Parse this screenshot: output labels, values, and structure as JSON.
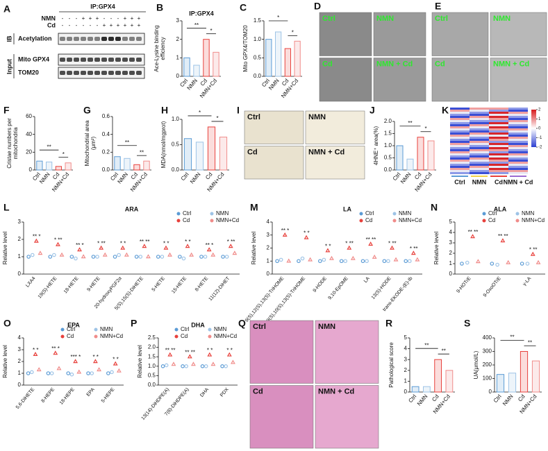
{
  "chart_data": [
    {
      "type": "bar",
      "letter": "B",
      "title": "IP:GPX4",
      "ylabel": [
        "Ace-Lysine binding",
        "efficiency"
      ],
      "categories": [
        "Ctrl",
        "NMN",
        "Cd",
        "NMN+Cd"
      ],
      "values": [
        1.0,
        0.6,
        2.0,
        1.3
      ],
      "colors": [
        "#5b9bd5",
        "#9dc3e6",
        "#e8413c",
        "#f08c8a"
      ],
      "ylim": [
        0,
        3
      ],
      "yticks": [
        0,
        1,
        2,
        3
      ],
      "significance": [
        "**",
        "*"
      ]
    },
    {
      "type": "bar",
      "letter": "C",
      "ylabel": "Mito GPX4/TOM20",
      "categories": [
        "Ctrl",
        "NMN",
        "Cd",
        "NMN+Cd"
      ],
      "values": [
        1.0,
        1.2,
        0.75,
        0.95
      ],
      "colors": [
        "#5b9bd5",
        "#9dc3e6",
        "#e8413c",
        "#f08c8a"
      ],
      "ylim": [
        0,
        1.5
      ],
      "yticks": [
        {
          "value": 0,
          "label": "0.0"
        },
        {
          "value": 0.5,
          "label": "0.5"
        },
        {
          "value": 1,
          "label": "1.0"
        },
        {
          "value": 1.5,
          "label": "1.5"
        }
      ],
      "significance": [
        "*",
        "*"
      ]
    },
    {
      "type": "bar",
      "letter": "F",
      "ylabel": [
        "Cristae numbers per",
        "mitochondria"
      ],
      "categories": [
        "Ctrl",
        "NMN",
        "Cd",
        "NMN+Cd"
      ],
      "values": [
        10,
        9,
        4,
        8
      ],
      "colors": [
        "#5b9bd5",
        "#9dc3e6",
        "#e8413c",
        "#f08c8a"
      ],
      "ylim": [
        0,
        60
      ],
      "yticks": [
        0,
        20,
        40,
        60
      ],
      "significance": [
        "**",
        "*"
      ]
    },
    {
      "type": "bar",
      "letter": "G",
      "ylabel": [
        "Mitochondrial area",
        "(μm²)"
      ],
      "categories": [
        "Ctrl",
        "NMN",
        "Cd",
        "NMN+Cd"
      ],
      "values": [
        0.15,
        0.13,
        0.06,
        0.1
      ],
      "colors": [
        "#5b9bd5",
        "#9dc3e6",
        "#e8413c",
        "#f08c8a"
      ],
      "ylim": [
        0,
        0.6
      ],
      "yticks": [
        {
          "value": 0,
          "label": "0.0"
        },
        0.2,
        0.4,
        0.6
      ],
      "significance": [
        "**",
        "**"
      ]
    },
    {
      "type": "bar",
      "letter": "H",
      "ylabel": "MDA(nmol/mgprot)",
      "categories": [
        "Ctrl",
        "NMN",
        "Cd",
        "NMN+Cd"
      ],
      "values": [
        0.62,
        0.55,
        0.85,
        0.65
      ],
      "colors": [
        "#5b9bd5",
        "#9dc3e6",
        "#e8413c",
        "#f08c8a"
      ],
      "ylim": [
        0,
        1
      ],
      "yticks": [
        {
          "value": 0,
          "label": "0.0"
        },
        0.5,
        {
          "value": 1,
          "label": "1.0"
        }
      ],
      "significance": [
        "*",
        "*"
      ]
    },
    {
      "type": "bar",
      "letter": "J",
      "ylabel": "4HNE⁺ area(%)",
      "categories": [
        "Ctrl",
        "NMN",
        "Cd",
        "NMN+Cd"
      ],
      "values": [
        1.0,
        0.45,
        1.35,
        1.2
      ],
      "colors": [
        "#5b9bd5",
        "#9dc3e6",
        "#e8413c",
        "#f08c8a"
      ],
      "ylim": [
        0,
        2
      ],
      "yticks": [
        {
          "value": 0,
          "label": "0.0"
        },
        0.5,
        {
          "value": 1,
          "label": "1.0"
        },
        1.5,
        {
          "value": 2,
          "label": "2.0"
        }
      ],
      "significance": [
        "**",
        "*"
      ]
    },
    {
      "type": "dot",
      "letter": "L",
      "title": "ARA",
      "ylabel": "Relative level",
      "categories": [
        "LXA4",
        "19(S)-HETE",
        "18-HETE",
        "9-HETE",
        "20-hydroxyPGF2α",
        "5(S),15(S)-DiHETE",
        "5-HETE",
        "15-HETE",
        "8-HETE",
        "11(12)-DiHET"
      ],
      "series": [
        {
          "name": "Ctrl",
          "color": "#5b9bd5",
          "values": [
            1.0,
            1.0,
            1.0,
            1.0,
            1.0,
            1.0,
            1.0,
            1.0,
            1.0,
            1.0
          ]
        },
        {
          "name": "NMN",
          "color": "#9dc3e6",
          "values": [
            1.1,
            1.1,
            0.9,
            1.0,
            1.1,
            1.0,
            1.0,
            0.9,
            1.0,
            1.0
          ]
        },
        {
          "name": "Cd",
          "color": "#e8413c",
          "values": [
            1.9,
            1.7,
            1.4,
            1.5,
            1.5,
            1.6,
            1.5,
            1.6,
            1.4,
            1.6
          ]
        },
        {
          "name": "NMN+Cd",
          "color": "#f08c8a",
          "values": [
            1.2,
            1.1,
            1.0,
            1.1,
            1.1,
            1.0,
            1.1,
            1.1,
            1.1,
            1.2
          ]
        }
      ],
      "ylim": [
        0,
        3
      ],
      "yticks": [
        0,
        1,
        2,
        3
      ],
      "significance": [
        "** *",
        "* **",
        "** *",
        "* **",
        "* *",
        "** **",
        "* *",
        "* *",
        "** *",
        "* **"
      ]
    },
    {
      "type": "dot",
      "letter": "M",
      "title": "LA",
      "ylabel": "Relative level",
      "categories": [
        "9(S),12(S),13(S)-TriHOME",
        "9(S),10(S),13(S)-TriHOME",
        "9-HODE",
        "9,10-EpOME",
        "LA",
        "13(S)-HODE",
        "trans-EKODE-(E)-Ib"
      ],
      "series": [
        {
          "name": "Ctrl",
          "color": "#5b9bd5",
          "values": [
            1.0,
            1.0,
            1.0,
            1.0,
            1.0,
            1.0,
            1.0
          ]
        },
        {
          "name": "NMN",
          "color": "#9dc3e6",
          "values": [
            1.1,
            1.2,
            1.1,
            1.0,
            1.0,
            1.0,
            1.0
          ]
        },
        {
          "name": "Cd",
          "color": "#e8413c",
          "values": [
            3.0,
            2.8,
            1.8,
            2.0,
            2.3,
            2.0,
            1.6
          ]
        },
        {
          "name": "NMN+Cd",
          "color": "#f08c8a",
          "values": [
            1.0,
            1.1,
            1.2,
            1.2,
            1.3,
            1.1,
            1.1
          ]
        }
      ],
      "ylim": [
        0,
        4
      ],
      "yticks": [
        0,
        1,
        2,
        3,
        4
      ],
      "significance": [
        "** *",
        "* *",
        "* *",
        "* **",
        "** **",
        "* **",
        "* **"
      ]
    },
    {
      "type": "dot",
      "letter": "N",
      "title": "ALA",
      "ylabel": "Relative level",
      "categories": [
        "9-HOTrE",
        "9-OxoOTrE",
        "γ-LA"
      ],
      "series": [
        {
          "name": "Ctrl",
          "color": "#5b9bd5",
          "values": [
            1.0,
            1.0,
            1.0
          ]
        },
        {
          "name": "NMN",
          "color": "#9dc3e6",
          "values": [
            1.1,
            0.9,
            1.0
          ]
        },
        {
          "name": "Cd",
          "color": "#e8413c",
          "values": [
            3.6,
            3.2,
            1.9
          ]
        },
        {
          "name": "NMN+Cd",
          "color": "#f08c8a",
          "values": [
            1.2,
            1.1,
            1.1
          ]
        }
      ],
      "ylim": [
        0,
        5
      ],
      "yticks": [
        0,
        1,
        2,
        3,
        4,
        5
      ],
      "significance": [
        "** **",
        "** **",
        "* **"
      ]
    },
    {
      "type": "dot",
      "letter": "O",
      "title": "EPA",
      "ylabel": "Relative level",
      "categories": [
        "5,6-DiHETE",
        "8-HEPE",
        "18-HEPE",
        "EPA",
        "5-HEPE"
      ],
      "series": [
        {
          "name": "Ctrl",
          "color": "#5b9bd5",
          "values": [
            1.0,
            1.0,
            1.0,
            1.0,
            1.0
          ]
        },
        {
          "name": "NMN",
          "color": "#9dc3e6",
          "values": [
            1.1,
            1.0,
            0.9,
            1.0,
            1.1
          ]
        },
        {
          "name": "Cd",
          "color": "#e8413c",
          "values": [
            2.6,
            2.7,
            2.0,
            2.0,
            1.8
          ]
        },
        {
          "name": "NMN+Cd",
          "color": "#f08c8a",
          "values": [
            1.3,
            1.4,
            1.1,
            1.3,
            1.2
          ]
        }
      ],
      "ylim": [
        0,
        4
      ],
      "yticks": [
        0,
        1,
        2,
        3,
        4
      ],
      "significance": [
        "* *",
        "** *",
        "*** *",
        "* *",
        "* *"
      ]
    },
    {
      "type": "dot",
      "letter": "P",
      "title": "DHA",
      "ylabel": "Relative level",
      "categories": [
        "13(14)-DiHDPE(A)",
        "7(8)-DiHDPE(A)",
        "DHA",
        "PDX"
      ],
      "series": [
        {
          "name": "Ctrl",
          "color": "#5b9bd5",
          "values": [
            1.0,
            1.0,
            1.0,
            1.0
          ]
        },
        {
          "name": "NMN",
          "color": "#9dc3e6",
          "values": [
            1.05,
            1.0,
            1.0,
            1.0
          ]
        },
        {
          "name": "Cd",
          "color": "#e8413c",
          "values": [
            1.6,
            1.5,
            1.6,
            1.6
          ]
        },
        {
          "name": "NMN+Cd",
          "color": "#f08c8a",
          "values": [
            1.1,
            1.1,
            1.1,
            1.2
          ]
        }
      ],
      "ylim": [
        0,
        2.5
      ],
      "yticks": [
        {
          "value": 0,
          "label": "0.0"
        },
        0.5,
        {
          "value": 1,
          "label": "1.0"
        },
        1.5,
        {
          "value": 2,
          "label": "2.0"
        },
        2.5
      ],
      "significance": [
        "** **",
        "** **",
        "* *",
        "* *"
      ]
    },
    {
      "type": "bar",
      "letter": "R",
      "ylabel": "Pathological score",
      "categories": [
        "Ctrl",
        "NMN",
        "Cd",
        "NMN+Cd"
      ],
      "values": [
        0.5,
        0.5,
        3.0,
        2.0
      ],
      "colors": [
        "#5b9bd5",
        "#9dc3e6",
        "#e8413c",
        "#f08c8a"
      ],
      "ylim": [
        0,
        5
      ],
      "yticks": [
        0,
        1,
        2,
        3,
        4,
        5
      ],
      "significance": [
        "**",
        "**"
      ]
    },
    {
      "type": "bar",
      "letter": "S",
      "ylabel": "UA(μmol/L)",
      "categories": [
        "Ctrl",
        "NMN",
        "Cd",
        "NMN+Cd"
      ],
      "values": [
        130,
        140,
        300,
        230
      ],
      "colors": [
        "#5b9bd5",
        "#9dc3e6",
        "#e8413c",
        "#f08c8a"
      ],
      "ylim": [
        0,
        400
      ],
      "yticks": [
        0,
        100,
        200,
        300,
        400
      ],
      "significance": [
        "**",
        "**"
      ]
    }
  ],
  "blot": {
    "letter": "A",
    "title": "IP:GPX4",
    "rows": [
      {
        "label": "NMN",
        "signs": [
          "-",
          "-",
          "-",
          "+",
          "+",
          "+",
          "-",
          "-",
          "-",
          "+",
          "+",
          "+"
        ]
      },
      {
        "label": "Cd",
        "signs": [
          "-",
          "-",
          "-",
          "-",
          "-",
          "-",
          "+",
          "+",
          "+",
          "+",
          "+",
          "+"
        ]
      }
    ],
    "ib": "IB",
    "input": "Input",
    "bands": [
      "Acetylation",
      "Mito GPX4",
      "TOM20"
    ]
  },
  "micrographs": [
    {
      "letter": "D",
      "labels": [
        "Ctrl",
        "NMN",
        "Cd",
        "NMN + Cd"
      ]
    },
    {
      "letter": "E",
      "labels": [
        "Ctrl",
        "NMN",
        "Cd",
        "NMN + Cd"
      ]
    },
    {
      "letter": "I",
      "labels": [
        "Ctrl",
        "NMN",
        "Cd",
        "NMN + Cd"
      ]
    },
    {
      "letter": "Q",
      "labels": [
        "Ctrl",
        "NMN",
        "Cd",
        "NMN + Cd"
      ]
    }
  ],
  "heatmap": {
    "letter": "K",
    "groups": [
      "Ctrl",
      "NMN",
      "Cd",
      "NMN + Cd"
    ],
    "colorbar_ticks": [
      2,
      1,
      0,
      -1,
      -2
    ]
  }
}
